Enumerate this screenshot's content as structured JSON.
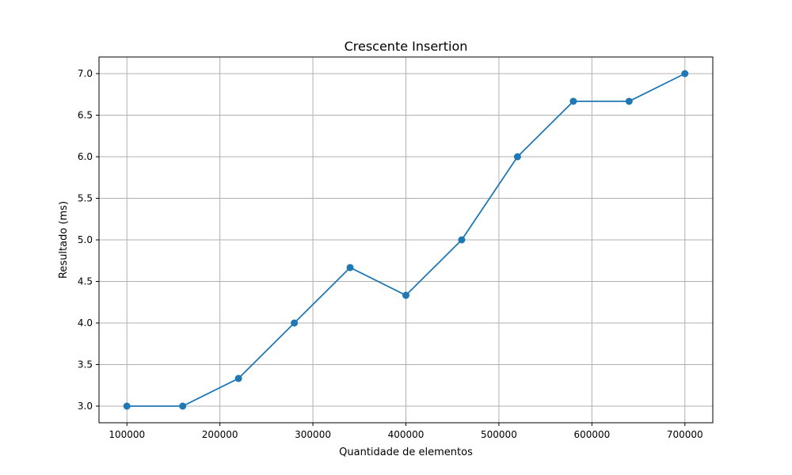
{
  "chart_data": {
    "type": "line",
    "title": "Crescente Insertion",
    "xlabel": "Quantidade de elementos",
    "ylabel": "Resultado (ms)",
    "x": [
      100000,
      160000,
      220000,
      280000,
      340000,
      400000,
      460000,
      520000,
      580000,
      640000,
      700000
    ],
    "series": [
      {
        "values": [
          3.0,
          3.0,
          3.333,
          4.0,
          4.667,
          4.333,
          5.0,
          6.0,
          6.667,
          6.667,
          7.0
        ],
        "color": "#1f77b4",
        "marker": "circle"
      }
    ],
    "xticks": [
      100000,
      200000,
      300000,
      400000,
      500000,
      600000,
      700000
    ],
    "xtick_labels": [
      "100000",
      "200000",
      "300000",
      "400000",
      "500000",
      "600000",
      "700000"
    ],
    "yticks": [
      3.0,
      3.5,
      4.0,
      4.5,
      5.0,
      5.5,
      6.0,
      6.5,
      7.0
    ],
    "ytick_labels": [
      "3.0",
      "3.5",
      "4.0",
      "4.5",
      "5.0",
      "5.5",
      "6.0",
      "6.5",
      "7.0"
    ],
    "xlim": [
      70000,
      730000
    ],
    "ylim": [
      2.8,
      7.2
    ],
    "grid": true,
    "colors": {
      "grid": "#b0b0b0",
      "axes": "#000000"
    }
  }
}
